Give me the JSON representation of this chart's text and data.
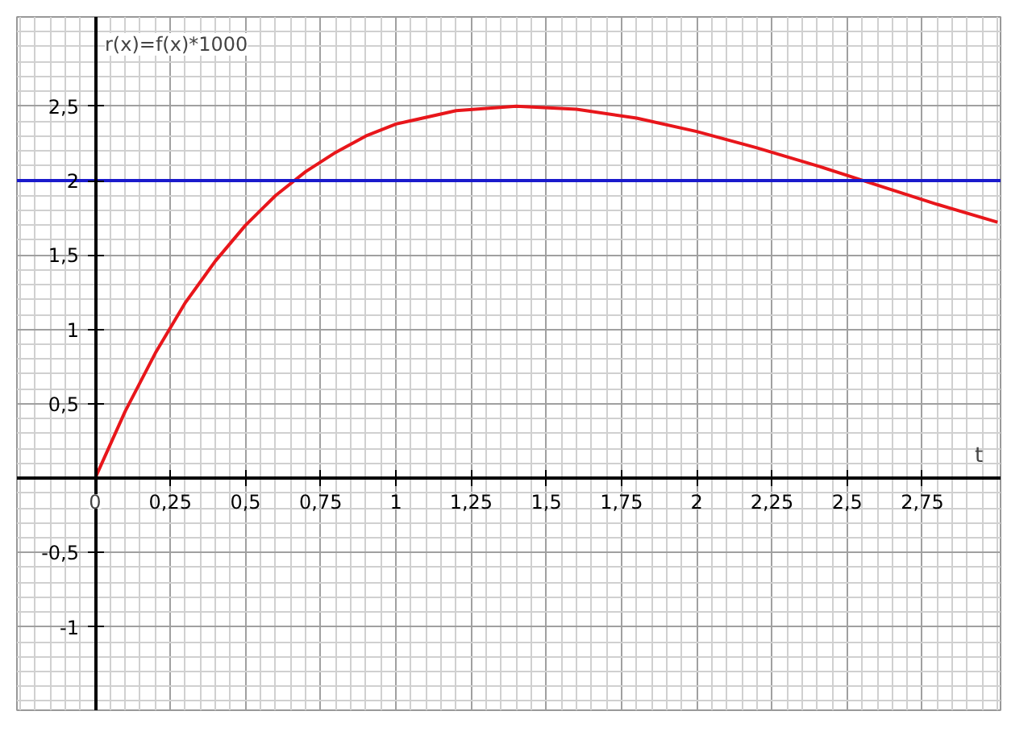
{
  "chart_data": {
    "type": "line",
    "xlabel": "t",
    "ylabel": "r(x)=f(x)*1000",
    "xlim": [
      -0.26,
      3.01
    ],
    "ylim": [
      -1.56,
      3.1
    ],
    "xticks": [
      {
        "value": 0,
        "label": "0"
      },
      {
        "value": 0.25,
        "label": "0,25"
      },
      {
        "value": 0.5,
        "label": "0,5"
      },
      {
        "value": 0.75,
        "label": "0,75"
      },
      1,
      {
        "value": 1.25,
        "label": "1,25"
      },
      {
        "value": 1.5,
        "label": "1,5"
      },
      {
        "value": 1.75,
        "label": "1,75"
      },
      2,
      {
        "value": 2.25,
        "label": "2,25"
      },
      {
        "value": 2.5,
        "label": "2,5"
      },
      {
        "value": 2.75,
        "label": "2,75"
      }
    ],
    "yticks": [
      {
        "value": -1,
        "label": "-1"
      },
      {
        "value": -0.5,
        "label": "-0,5"
      },
      {
        "value": 0.5,
        "label": "0,5"
      },
      1,
      {
        "value": 1.5,
        "label": "1,5"
      },
      2,
      {
        "value": 2.5,
        "label": "2,5"
      }
    ],
    "grid": true,
    "marker": "none",
    "line_style": "solid",
    "series": [
      {
        "color": "#e8161b",
        "x": [
          0,
          0.1,
          0.2,
          0.3,
          0.4,
          0.5,
          0.6,
          0.7,
          0.8,
          0.9,
          1.0,
          1.2,
          1.4,
          1.6,
          1.8,
          2.0,
          2.2,
          2.4,
          2.6,
          2.8,
          3.0
        ],
        "values": [
          0,
          0.45,
          0.84,
          1.18,
          1.46,
          1.7,
          1.9,
          2.06,
          2.19,
          2.3,
          2.38,
          2.47,
          2.5,
          2.48,
          2.42,
          2.33,
          2.22,
          2.1,
          1.97,
          1.84,
          1.72
        ]
      }
    ],
    "ref_lines": [
      {
        "axis": "y",
        "value": 2,
        "color": "#1a1acc"
      }
    ]
  }
}
